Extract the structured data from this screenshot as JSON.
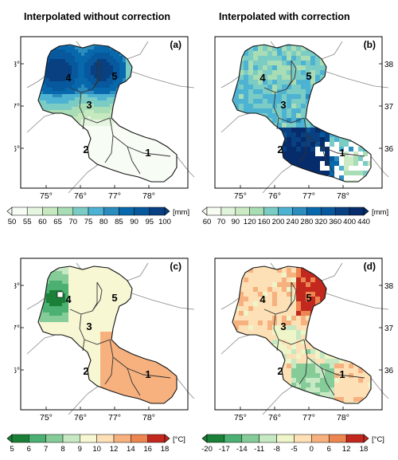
{
  "titles": {
    "left": "Interpolated without correction",
    "right": "Interpolated with correction"
  },
  "panels": [
    {
      "id": "a",
      "tag": "(a)",
      "variable": "precipitation",
      "palette": "blue",
      "regions": [
        {
          "label": "4"
        },
        {
          "label": "5"
        },
        {
          "label": "3"
        },
        {
          "label": "2"
        },
        {
          "label": "1"
        }
      ]
    },
    {
      "id": "b",
      "tag": "(b)",
      "variable": "precipitation",
      "palette": "blue",
      "regions": [
        {
          "label": "4"
        },
        {
          "label": "5"
        },
        {
          "label": "3"
        },
        {
          "label": "2"
        },
        {
          "label": "1"
        }
      ]
    },
    {
      "id": "c",
      "tag": "(c)",
      "variable": "temperature",
      "palette": "diverging",
      "regions": [
        {
          "label": "4"
        },
        {
          "label": "5"
        },
        {
          "label": "3"
        },
        {
          "label": "2"
        },
        {
          "label": "1"
        }
      ]
    },
    {
      "id": "d",
      "tag": "(d)",
      "variable": "temperature",
      "palette": "diverging",
      "regions": [
        {
          "label": "4"
        },
        {
          "label": "5"
        },
        {
          "label": "3"
        },
        {
          "label": "2"
        },
        {
          "label": "1"
        }
      ]
    }
  ],
  "axes": {
    "lon_labels": [
      "75°",
      "76°",
      "77°",
      "78°"
    ],
    "lat_labels": [
      "38°",
      "37°",
      "36°"
    ]
  },
  "colorbars": [
    {
      "id": "a",
      "unit": "[mm]",
      "ticks": [
        "50",
        "55",
        "60",
        "65",
        "70",
        "75",
        "80",
        "85",
        "90",
        "95",
        "100"
      ],
      "colors": [
        "#f7fcf5",
        "#e5f5e0",
        "#c7e9c0",
        "#a8ddb5",
        "#7bccc4",
        "#4eb3d3",
        "#2b8cbe",
        "#0868ac",
        "#08589e",
        "#084081"
      ]
    },
    {
      "id": "b",
      "unit": "[mm]",
      "ticks": [
        "60",
        "70",
        "90",
        "120",
        "160",
        "200",
        "240",
        "280",
        "320",
        "360",
        "400",
        "440"
      ],
      "colors": [
        "#f7fcf0",
        "#e0f3db",
        "#ccebc5",
        "#a8ddb5",
        "#7bccc4",
        "#4eb3d3",
        "#2b8cbe",
        "#0868ac",
        "#08589e",
        "#084081",
        "#062c6b"
      ]
    },
    {
      "id": "c",
      "unit": "[°C]",
      "ticks": [
        "5",
        "6",
        "7",
        "8",
        "9",
        "10",
        "12",
        "14",
        "16",
        "18"
      ],
      "colors": [
        "#1a7f37",
        "#4bb071",
        "#86cc98",
        "#c6e8c3",
        "#f7f7d4",
        "#fde0b5",
        "#f6b17f",
        "#ec8550",
        "#c3281e"
      ]
    },
    {
      "id": "d",
      "unit": "[°C]",
      "ticks": [
        "-20",
        "-17",
        "-14",
        "-11",
        "-8",
        "-5",
        "0",
        "6",
        "12",
        "18"
      ],
      "colors": [
        "#1a7f37",
        "#4bb071",
        "#86cc98",
        "#c6e8c3",
        "#eef5c8",
        "#fde0b5",
        "#f6b17f",
        "#ec8550",
        "#c3281e"
      ]
    }
  ]
}
